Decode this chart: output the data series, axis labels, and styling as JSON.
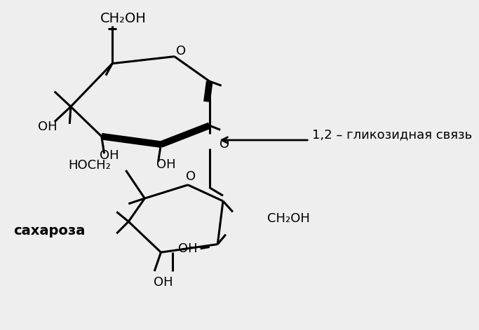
{
  "bg_color": "#eeeeee",
  "line_color": "#000000",
  "text_color": "#000000",
  "annotation_text": "1,2 – гликозидная связь",
  "saharoza_text": "сахароза"
}
